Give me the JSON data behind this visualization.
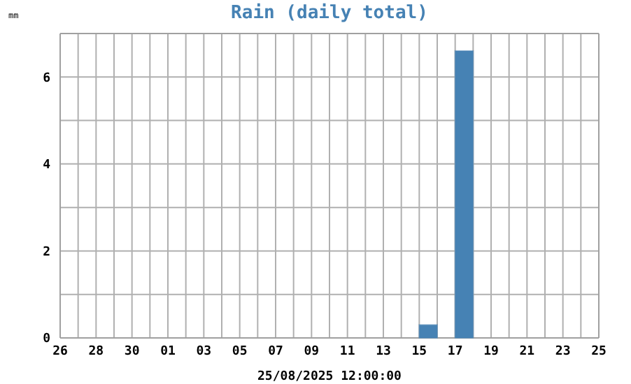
{
  "chart_data": {
    "type": "bar",
    "title": "Rain (daily total)",
    "xlabel": "25/08/2025 12:00:00",
    "ylabel": "mm",
    "x": [
      "2025-07-30T12:00",
      "2025-07-31T12:00",
      "2025-08-01T12:00",
      "2025-08-02T12:00",
      "2025-08-03T12:00",
      "2025-08-04T12:00",
      "2025-08-05T12:00",
      "2025-08-06T12:00",
      "2025-08-07T12:00",
      "2025-08-08T12:00",
      "2025-08-09T12:00",
      "2025-08-10T12:00",
      "2025-08-11T12:00",
      "2025-08-12T12:00",
      "2025-08-13T12:00",
      "2025-08-14T12:00",
      "2025-08-15T12:00",
      "2025-08-16T12:00",
      "2025-08-17T12:00",
      "2025-08-18T12:00",
      "2025-08-19T12:00",
      "2025-08-20T12:00",
      "2025-08-21T12:00",
      "2025-08-22T12:00",
      "2025-08-23T12:00",
      "2025-08-24T12:00"
    ],
    "values": [
      0,
      0,
      0,
      0,
      0,
      0,
      0,
      0,
      0,
      0,
      0,
      0,
      0,
      0,
      0,
      0,
      0.3,
      0,
      6.6,
      0,
      0,
      0,
      0,
      0,
      0,
      0
    ],
    "color": "#4682b4",
    "xlim": [
      "2025-07-26",
      "2025-08-25"
    ],
    "xticks": [
      {
        "value": "2025-07-26",
        "label": "26"
      },
      {
        "value": "2025-07-27",
        "label": null
      },
      {
        "value": "2025-07-28",
        "label": "28"
      },
      {
        "value": "2025-07-29",
        "label": null
      },
      {
        "value": "2025-07-30",
        "label": "30"
      },
      {
        "value": "2025-07-31",
        "label": null
      },
      {
        "value": "2025-08-01",
        "label": "01"
      },
      {
        "value": "2025-08-02",
        "label": null
      },
      {
        "value": "2025-08-03",
        "label": "03"
      },
      {
        "value": "2025-08-04",
        "label": null
      },
      {
        "value": "2025-08-05",
        "label": "05"
      },
      {
        "value": "2025-08-06",
        "label": null
      },
      {
        "value": "2025-08-07",
        "label": "07"
      },
      {
        "value": "2025-08-08",
        "label": null
      },
      {
        "value": "2025-08-09",
        "label": "09"
      },
      {
        "value": "2025-08-10",
        "label": null
      },
      {
        "value": "2025-08-11",
        "label": "11"
      },
      {
        "value": "2025-08-12",
        "label": null
      },
      {
        "value": "2025-08-13",
        "label": "13"
      },
      {
        "value": "2025-08-14",
        "label": null
      },
      {
        "value": "2025-08-15",
        "label": "15"
      },
      {
        "value": "2025-08-16",
        "label": null
      },
      {
        "value": "2025-08-17",
        "label": "17"
      },
      {
        "value": "2025-08-18",
        "label": null
      },
      {
        "value": "2025-08-19",
        "label": "19"
      },
      {
        "value": "2025-08-20",
        "label": null
      },
      {
        "value": "2025-08-21",
        "label": "21"
      },
      {
        "value": "2025-08-22",
        "label": null
      },
      {
        "value": "2025-08-23",
        "label": "23"
      },
      {
        "value": "2025-08-24",
        "label": null
      },
      {
        "value": "2025-08-25",
        "label": "25"
      }
    ],
    "ylim": [
      0,
      7
    ],
    "yticks": [
      0,
      {
        "value": 1,
        "label": null
      },
      2,
      {
        "value": 3,
        "label": null
      },
      4,
      {
        "value": 5,
        "label": null
      },
      6,
      {
        "value": 7,
        "label": null
      }
    ],
    "grid": true
  }
}
